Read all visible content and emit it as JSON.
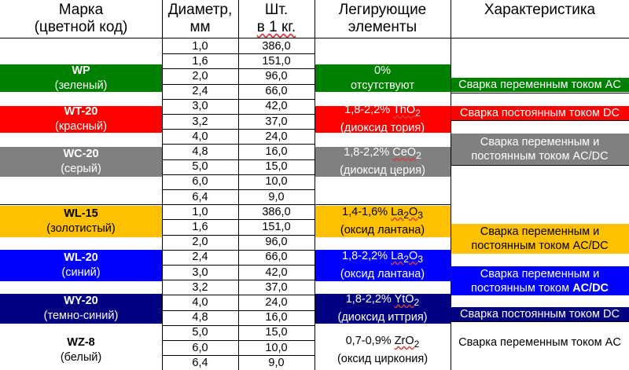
{
  "headers": {
    "grade": [
      "Марка",
      "(цветной код)"
    ],
    "diameter": [
      "Диаметр,",
      "мм"
    ],
    "count": [
      "Шт.",
      "в 1 кг."
    ],
    "alloy": [
      "Легирующие",
      "элементы"
    ],
    "characteristic": "Характеристика"
  },
  "rows": [
    {
      "d": "1,0",
      "n": "386,0"
    },
    {
      "d": "1,6",
      "n": "151,0"
    },
    {
      "d": "2,0",
      "n": "96,0"
    },
    {
      "d": "2,4",
      "n": "66,0"
    },
    {
      "d": "3,0",
      "n": "42,0"
    },
    {
      "d": "3,2",
      "n": "37,0"
    },
    {
      "d": "4,0",
      "n": "24,0"
    },
    {
      "d": "4,8",
      "n": "16,0"
    },
    {
      "d": "5,0",
      "n": "15,0"
    },
    {
      "d": "6,0",
      "n": "10,0"
    },
    {
      "d": "6,4",
      "n": "9,0"
    },
    {
      "d": "1,0",
      "n": "386,0"
    },
    {
      "d": "1,6",
      "n": "151,0"
    },
    {
      "d": "2,0",
      "n": "96,0"
    },
    {
      "d": "2,4",
      "n": "66,0"
    },
    {
      "d": "3,0",
      "n": "42,0"
    },
    {
      "d": "3,2",
      "n": "37,0"
    },
    {
      "d": "4,0",
      "n": "24,0"
    },
    {
      "d": "4,8",
      "n": "16,0"
    },
    {
      "d": "5,0",
      "n": "15,0"
    },
    {
      "d": "6,0",
      "n": "10,0"
    },
    {
      "d": "6,4",
      "n": "9,0"
    }
  ],
  "grades": [
    {
      "code": "WP",
      "color_name": "(зеленый)",
      "bg": "#008000",
      "fg": "#ffffff"
    },
    {
      "code": "WT-20",
      "color_name": "(красный)",
      "bg": "#ff0000",
      "fg": "#ffffff"
    },
    {
      "code": "WC-20",
      "color_name": "(серый)",
      "bg": "#808080",
      "fg": "#ffffff"
    },
    {
      "code": "WL-15",
      "color_name": "(золотистый)",
      "bg": "#ffc000",
      "fg": "#000000"
    },
    {
      "code": "WL-20",
      "color_name": "(синий)",
      "bg": "#0000ff",
      "fg": "#ffffff"
    },
    {
      "code": "WY-20",
      "color_name": "(темно-синий)",
      "bg": "#000080",
      "fg": "#ffffff"
    },
    {
      "code": "WZ-8",
      "color_name": "(белый)",
      "bg": "#ffffff",
      "fg": "#000000"
    }
  ],
  "alloys": [
    {
      "line1": "0%",
      "line2": "отсутствуют",
      "formula": ""
    },
    {
      "line1": "1,8-2,2%",
      "formula": "ThO",
      "sub": "2",
      "line2": "(диоксид тория)"
    },
    {
      "line1": "1,8-2,2%",
      "formula": "CeO",
      "sub": "2",
      "line2": "(диоксид церия)"
    },
    {
      "line1": "1,4-1,6%",
      "formula": "La",
      "sub": "2",
      "formula2": "O",
      "sub2": "3",
      "line2": "(оксид лантана)"
    },
    {
      "line1": "1,8-2,2%",
      "formula": "La",
      "sub": "2",
      "formula2": "O",
      "sub2": "3",
      "line2": "(оксид лантана)"
    },
    {
      "line1": "1,8-2,2%",
      "formula": "YtO",
      "sub": "2",
      "line2": "(диоксид иттрия)"
    },
    {
      "line1": "0,7-0,9%",
      "formula": "ZrO",
      "sub": "2",
      "line2": "(оксид циркония)"
    }
  ],
  "characteristics": {
    "wp": "Сварка переменным током AC",
    "wt20": "Сварка постоянным током DC",
    "wc20_l1": "Сварка переменным и",
    "wc20_l2": "постоянным током AC/DC",
    "wl15_l1": "Сварка переменным и",
    "wl15_l2": "постоянным током AC/DC",
    "wl20_l1": "Сварка переменным и",
    "wl20_l2a": "постоянным током ",
    "wl20_l2b": "AC/DC",
    "wy20": "Сварка постоянным током DC",
    "wz8": "Сварка переменным током AC"
  },
  "colors": {
    "green": "#008000",
    "red": "#ff0000",
    "gray": "#808080",
    "gold": "#ffc000",
    "blue": "#0000ff",
    "navy": "#000080"
  }
}
